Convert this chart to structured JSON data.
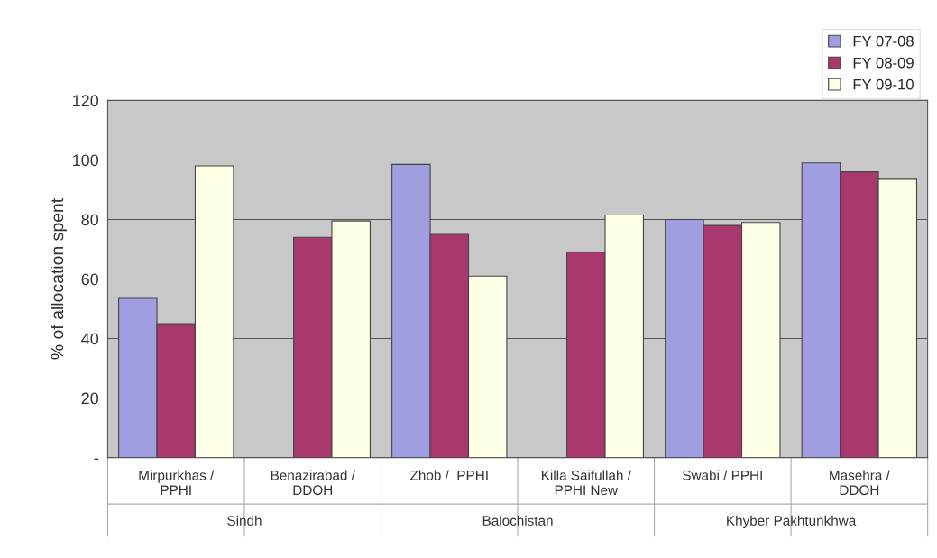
{
  "chart_data": {
    "type": "bar",
    "ylabel": "% of allocation spent",
    "categories": [
      "Mirpurkhas /\nPPHI",
      "Benazirabad /\nDDOH",
      "Zhob /  PPHI",
      "Killa Saifullah /\nPPHI New",
      "Swabi / PPHI",
      "Masehra /\nDDOH"
    ],
    "series": [
      {
        "name": "FY 07-08",
        "color": "#a09ee0",
        "values": [
          53.5,
          null,
          98.5,
          null,
          80,
          99
        ]
      },
      {
        "name": "FY 08-09",
        "color": "#a8386e",
        "values": [
          45,
          74,
          75,
          69,
          78,
          96
        ]
      },
      {
        "name": "FY 09-10",
        "color": "#ffffe6",
        "values": [
          98,
          79.5,
          61,
          81.5,
          79,
          93.5
        ]
      }
    ],
    "annotations": [
      "Sindh",
      "Balochistan",
      "Khyber Pakhtunkhwa"
    ],
    "ylim": [
      0,
      120
    ],
    "yticks": [
      {
        "value": 0,
        "label": "-"
      },
      20,
      40,
      60,
      80,
      100,
      120
    ],
    "grid": "y",
    "legend": "top right"
  }
}
